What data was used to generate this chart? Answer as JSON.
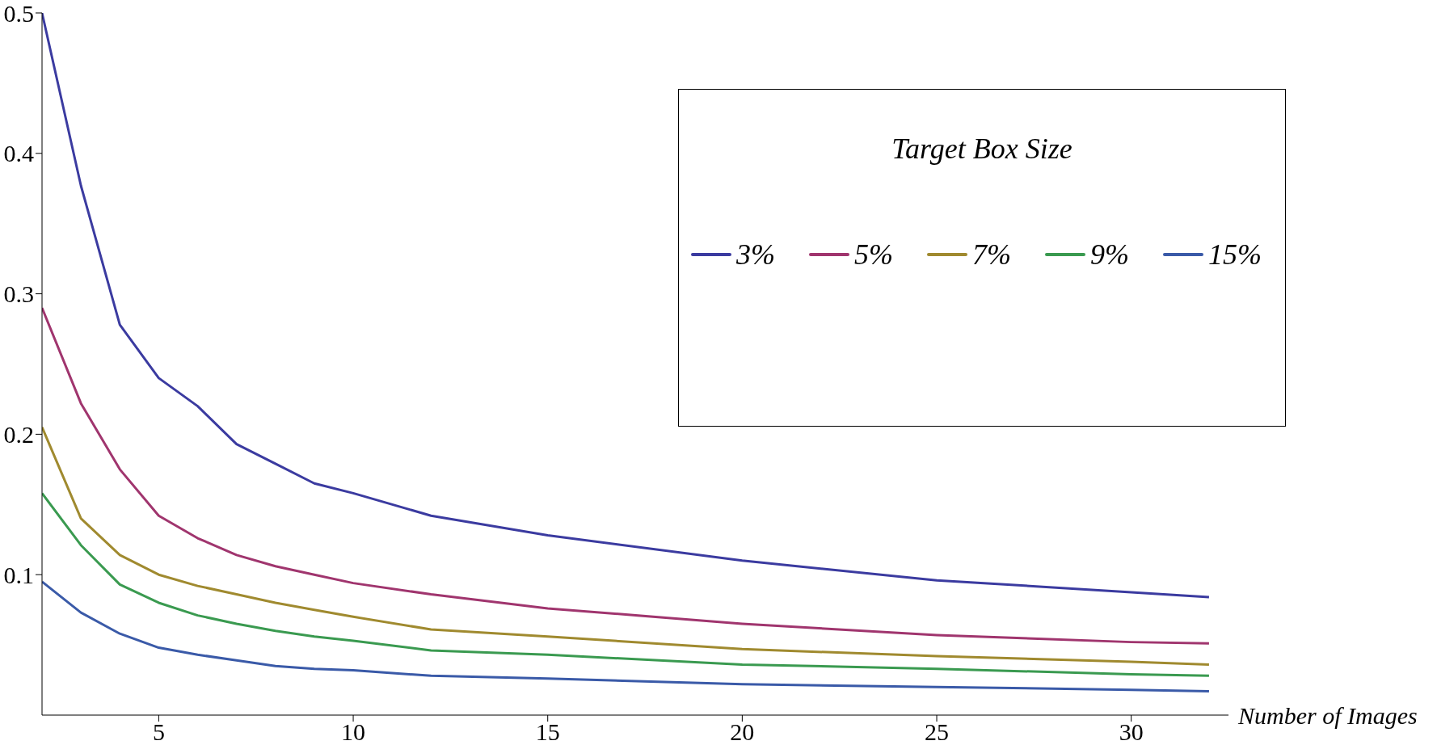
{
  "chart_data": {
    "type": "line",
    "xlabel": "Number of Images",
    "legend_title": "Target Box Size",
    "legend": "top right",
    "grid": false,
    "marker": "none",
    "line_style": "solid",
    "x": [
      2,
      3,
      4,
      5,
      6,
      7,
      8,
      9,
      10,
      12,
      15,
      20,
      25,
      30,
      32
    ],
    "xlim": [
      2,
      32.5
    ],
    "xticks": [
      5,
      10,
      15,
      20,
      25,
      30
    ],
    "ylim": [
      0,
      0.5
    ],
    "yticks": [
      0.1,
      0.2,
      0.3,
      0.4,
      0.5
    ],
    "series": [
      {
        "name": "3%",
        "color": "#3b3ba0",
        "values": [
          0.5,
          0.377,
          0.278,
          0.24,
          0.22,
          0.193,
          0.179,
          0.165,
          0.158,
          0.142,
          0.128,
          0.11,
          0.096,
          0.0875,
          0.084
        ]
      },
      {
        "name": "5%",
        "color": "#a0356e",
        "values": [
          0.29,
          0.222,
          0.175,
          0.142,
          0.126,
          0.114,
          0.106,
          0.1,
          0.094,
          0.086,
          0.076,
          0.065,
          0.057,
          0.052,
          0.051
        ]
      },
      {
        "name": "7%",
        "color": "#a08a2f",
        "values": [
          0.205,
          0.14,
          0.114,
          0.1,
          0.092,
          0.086,
          0.08,
          0.075,
          0.07,
          0.061,
          0.056,
          0.047,
          0.042,
          0.038,
          0.036
        ]
      },
      {
        "name": "9%",
        "color": "#3a9a50",
        "values": [
          0.158,
          0.121,
          0.093,
          0.08,
          0.071,
          0.065,
          0.06,
          0.056,
          0.053,
          0.046,
          0.043,
          0.036,
          0.033,
          0.029,
          0.028
        ]
      },
      {
        "name": "15%",
        "color": "#3a5aa8",
        "values": [
          0.095,
          0.073,
          0.058,
          0.048,
          0.043,
          0.039,
          0.035,
          0.033,
          0.032,
          0.028,
          0.026,
          0.022,
          0.02,
          0.018,
          0.017
        ]
      }
    ]
  }
}
